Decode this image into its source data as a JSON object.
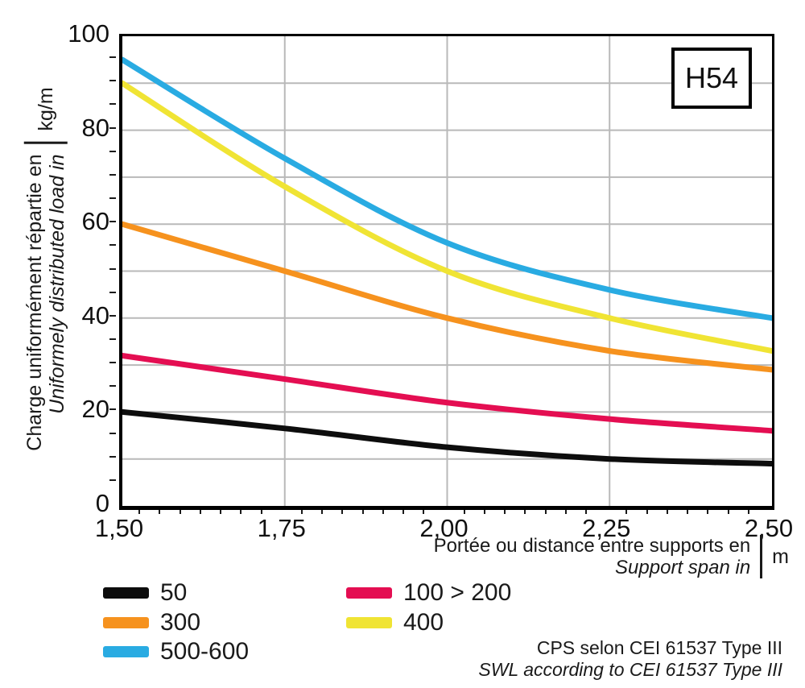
{
  "figure": {
    "code": "H54"
  },
  "y_axis": {
    "label_fr": "Charge uniformément répartie en",
    "label_en": "Uniformely distributed load in",
    "unit": "kg/m",
    "tick_labels": [
      "0",
      "20",
      "40",
      "60",
      "80",
      "100"
    ]
  },
  "x_axis": {
    "label_fr": "Portée ou distance entre supports en",
    "label_en": "Support span in",
    "unit": "m",
    "tick_values": [
      1.5,
      1.75,
      2.0,
      2.25,
      2.5
    ],
    "tick_labels": [
      "1,50",
      "1,75",
      "2,00",
      "2,25",
      "2,50"
    ]
  },
  "legend": {
    "columns": [
      [
        {
          "label": "50",
          "color": "#0d0d0d"
        },
        {
          "label": "300",
          "color": "#f6921e"
        },
        {
          "label": "500-600",
          "color": "#29abe2"
        }
      ],
      [
        {
          "label": "100 > 200",
          "color": "#e40e52"
        },
        {
          "label": "400",
          "color": "#f0e434"
        }
      ]
    ]
  },
  "footer": {
    "line_fr": "CPS selon CEI 61537 Type III",
    "line_en": "SWL according to CEI 61537 Type III"
  },
  "chart_data": {
    "type": "line",
    "title": "H54 cable tray safe working load curves",
    "x": [
      1.5,
      1.75,
      2.0,
      2.25,
      2.5
    ],
    "xlim": [
      1.5,
      2.5
    ],
    "ylim": [
      0,
      100
    ],
    "xlabel": "Portée ou distance entre supports en / Support span in (m)",
    "ylabel": "Charge uniformément répartie en / Uniformely distributed load in (kg/m)",
    "grid": true,
    "y_grid_interval": 10,
    "x_gridlines": [
      1.75,
      2.0,
      2.25
    ],
    "legend_position": "bottom-left",
    "series": [
      {
        "name": "50",
        "color": "#0d0d0d",
        "values": [
          20,
          16.5,
          12.5,
          10,
          9
        ]
      },
      {
        "name": "100 > 200",
        "color": "#e40e52",
        "values": [
          32,
          27,
          22,
          18.5,
          16
        ]
      },
      {
        "name": "300",
        "color": "#f6921e",
        "values": [
          60,
          50,
          40,
          33,
          29
        ]
      },
      {
        "name": "400",
        "color": "#f0e434",
        "values": [
          90,
          68,
          50,
          40,
          33
        ]
      },
      {
        "name": "500-600",
        "color": "#29abe2",
        "values": [
          95,
          74,
          56,
          46,
          40
        ]
      }
    ]
  },
  "style": {
    "grid_color": "#b9b9b9",
    "axis_color": "#000000",
    "text_color": "#1a1a1a",
    "stroke_width": 7
  }
}
